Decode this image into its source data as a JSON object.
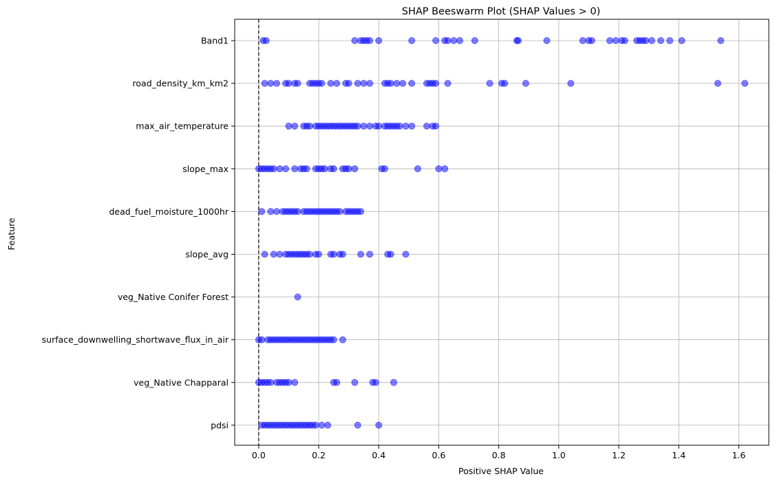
{
  "chart_data": {
    "type": "scatter",
    "title": "SHAP Beeswarm Plot (SHAP Values > 0)",
    "xlabel": "Positive SHAP Value",
    "ylabel": "Feature",
    "xlim": [
      -0.08,
      1.7
    ],
    "xticks": [
      0.0,
      0.2,
      0.4,
      0.6,
      0.8,
      1.0,
      1.2,
      1.4,
      1.6
    ],
    "xtick_labels": [
      "0.0",
      "0.2",
      "0.4",
      "0.6",
      "0.8",
      "1.0",
      "1.2",
      "1.4",
      "1.6"
    ],
    "grid": true,
    "reference_line": {
      "x": 0.0,
      "style": "dashed",
      "color": "#000000"
    },
    "point_color": "#0000ff",
    "point_alpha": 0.5,
    "features": [
      {
        "name": "Band1",
        "values": [
          0.015,
          0.025,
          0.32,
          0.34,
          0.35,
          0.36,
          0.37,
          0.4,
          0.51,
          0.59,
          0.62,
          0.63,
          0.65,
          0.67,
          0.72,
          0.86,
          0.865,
          0.96,
          1.08,
          1.1,
          1.11,
          1.17,
          1.19,
          1.21,
          1.22,
          1.26,
          1.27,
          1.28,
          1.29,
          1.31,
          1.34,
          1.37,
          1.41,
          1.54
        ]
      },
      {
        "name": "road_density_km_km2",
        "values": [
          0.02,
          0.04,
          0.06,
          0.09,
          0.1,
          0.12,
          0.13,
          0.17,
          0.18,
          0.19,
          0.2,
          0.21,
          0.24,
          0.26,
          0.29,
          0.3,
          0.33,
          0.35,
          0.37,
          0.42,
          0.43,
          0.44,
          0.46,
          0.48,
          0.51,
          0.56,
          0.57,
          0.58,
          0.59,
          0.63,
          0.77,
          0.81,
          0.82,
          0.89,
          1.04,
          1.53,
          1.62
        ]
      },
      {
        "name": "max_air_temperature",
        "values": [
          0.1,
          0.12,
          0.15,
          0.16,
          0.17,
          0.19,
          0.2,
          0.21,
          0.22,
          0.23,
          0.24,
          0.25,
          0.26,
          0.27,
          0.28,
          0.29,
          0.3,
          0.31,
          0.32,
          0.33,
          0.35,
          0.37,
          0.39,
          0.4,
          0.42,
          0.43,
          0.44,
          0.45,
          0.46,
          0.47,
          0.49,
          0.51,
          0.56,
          0.58,
          0.59
        ]
      },
      {
        "name": "slope_max",
        "values": [
          0.0,
          0.01,
          0.02,
          0.03,
          0.04,
          0.05,
          0.07,
          0.09,
          0.12,
          0.14,
          0.15,
          0.16,
          0.19,
          0.2,
          0.21,
          0.22,
          0.24,
          0.25,
          0.28,
          0.29,
          0.3,
          0.32,
          0.41,
          0.42,
          0.53,
          0.6,
          0.62
        ]
      },
      {
        "name": "dead_fuel_moisture_1000hr",
        "values": [
          0.01,
          0.04,
          0.06,
          0.08,
          0.09,
          0.1,
          0.11,
          0.12,
          0.13,
          0.15,
          0.16,
          0.17,
          0.18,
          0.19,
          0.2,
          0.21,
          0.22,
          0.23,
          0.24,
          0.25,
          0.26,
          0.27,
          0.29,
          0.3,
          0.31,
          0.32,
          0.33,
          0.34
        ]
      },
      {
        "name": "slope_avg",
        "values": [
          0.02,
          0.05,
          0.07,
          0.09,
          0.1,
          0.11,
          0.12,
          0.13,
          0.14,
          0.15,
          0.16,
          0.17,
          0.19,
          0.2,
          0.24,
          0.25,
          0.27,
          0.28,
          0.34,
          0.37,
          0.43,
          0.44,
          0.49
        ]
      },
      {
        "name": "veg_Native Conifer Forest ",
        "values": [
          0.13
        ]
      },
      {
        "name": "surface_downwelling_shortwave_flux_in_air",
        "values": [
          0.0,
          0.01,
          0.03,
          0.04,
          0.05,
          0.06,
          0.07,
          0.08,
          0.09,
          0.1,
          0.11,
          0.12,
          0.13,
          0.14,
          0.15,
          0.16,
          0.17,
          0.18,
          0.19,
          0.2,
          0.21,
          0.22,
          0.23,
          0.24,
          0.25,
          0.28
        ]
      },
      {
        "name": "veg_Native Chapparal ",
        "values": [
          0.0,
          0.01,
          0.02,
          0.03,
          0.04,
          0.06,
          0.07,
          0.08,
          0.09,
          0.1,
          0.12,
          0.25,
          0.26,
          0.32,
          0.38,
          0.39,
          0.45
        ]
      },
      {
        "name": "pdsi",
        "values": [
          0.01,
          0.02,
          0.03,
          0.04,
          0.05,
          0.06,
          0.07,
          0.08,
          0.09,
          0.1,
          0.11,
          0.12,
          0.13,
          0.14,
          0.15,
          0.16,
          0.17,
          0.18,
          0.19,
          0.21,
          0.23,
          0.33,
          0.4
        ]
      }
    ]
  }
}
